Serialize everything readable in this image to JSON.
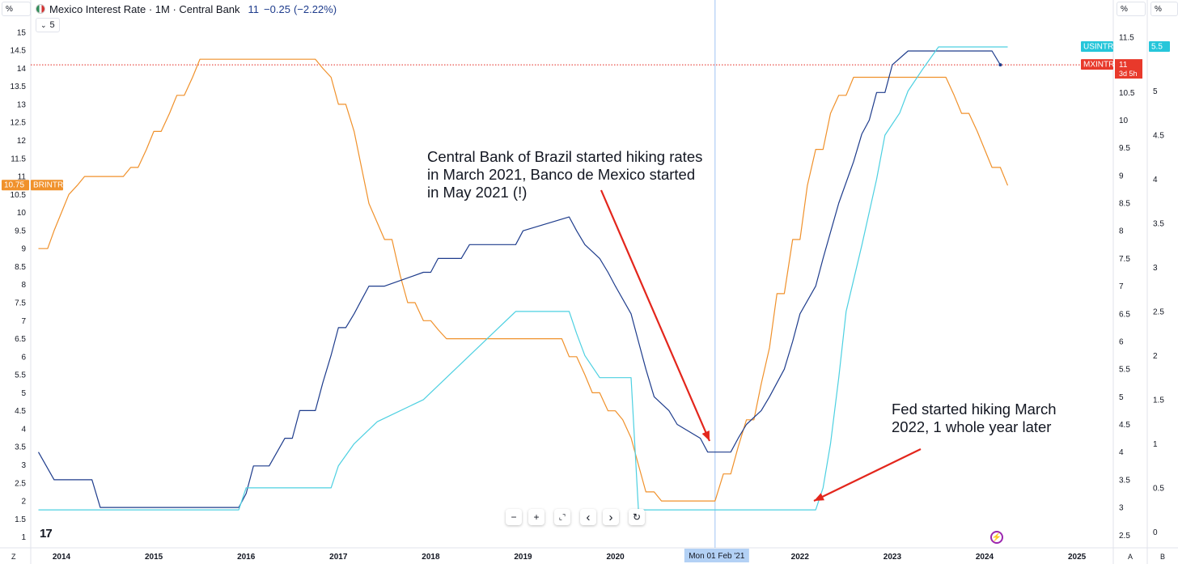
{
  "header": {
    "title": "Mexico Interest Rate · 1M · Central Bank",
    "last_value": "11",
    "change": "−0.25",
    "change_pct": "(−2.22%)",
    "series_count": "5",
    "left_pct_label": "%",
    "right_pct_label_1": "%",
    "right_pct_label_2": "%"
  },
  "toolbar": {
    "zoom_out": "−",
    "zoom_in": "+",
    "reset_view": "⌞⌝",
    "scroll_left": "‹",
    "scroll_right": "›",
    "refresh": "↻"
  },
  "footer": {
    "z_label": "Z",
    "a_label": "A",
    "b_label": "B",
    "logo": "17",
    "crosshair_date": "Mon 01 Feb '21"
  },
  "colors": {
    "BRINTR": "#f0912b",
    "MXINTR": "#1e3c8c",
    "USINTR": "#4dd0e1",
    "annotation_arrow": "#e3261c",
    "crosshair": "#9ec3f3",
    "grid": "#ffffff"
  },
  "chart_data": {
    "type": "line",
    "xlabel": "",
    "ylabel": "",
    "x_ticks": [
      "2014",
      "2015",
      "2016",
      "2017",
      "2018",
      "2019",
      "2020",
      "2021",
      "2022",
      "2023",
      "2024",
      "2025"
    ],
    "left_axis": {
      "unit": "%",
      "ylim": [
        0.7,
        15.4
      ],
      "ticks": [
        "15",
        "14.5",
        "14",
        "13.5",
        "13",
        "12.5",
        "12",
        "11.5",
        "11",
        "10.5",
        "10",
        "9.5",
        "9",
        "8.5",
        "8",
        "7.5",
        "7",
        "6.5",
        "6",
        "5.5",
        "5",
        "4.5",
        "4",
        "3.5",
        "3",
        "2.5",
        "2",
        "1.5",
        "1"
      ]
    },
    "right_axis_1": {
      "unit": "%",
      "ylim": [
        2.27,
        11.85
      ],
      "ticks": [
        "11.5",
        "11",
        "10.5",
        "10",
        "9.5",
        "9",
        "8.5",
        "8",
        "7.5",
        "7",
        "6.5",
        "6",
        "5.5",
        "5",
        "4.5",
        "4",
        "3.5",
        "3",
        "2.5"
      ]
    },
    "right_axis_2": {
      "unit": "%",
      "ylim": [
        -0.18,
        5.83
      ],
      "ticks": [
        "5",
        "4.5",
        "4",
        "3.5",
        "3",
        "2.5",
        "2",
        "1.5",
        "1",
        "0.5",
        "0"
      ]
    },
    "series": [
      {
        "name": "BRINTR",
        "axis": "left",
        "last_label": "10.75",
        "points": [
          [
            2013.75,
            9.0
          ],
          [
            2013.85,
            9.0
          ],
          [
            2013.92,
            9.5
          ],
          [
            2014.0,
            10.0
          ],
          [
            2014.08,
            10.5
          ],
          [
            2014.17,
            10.75
          ],
          [
            2014.25,
            11.0
          ],
          [
            2014.67,
            11.0
          ],
          [
            2014.75,
            11.25
          ],
          [
            2014.83,
            11.25
          ],
          [
            2014.92,
            11.75
          ],
          [
            2015.0,
            12.25
          ],
          [
            2015.08,
            12.25
          ],
          [
            2015.17,
            12.75
          ],
          [
            2015.25,
            13.25
          ],
          [
            2015.33,
            13.25
          ],
          [
            2015.42,
            13.75
          ],
          [
            2015.5,
            14.25
          ],
          [
            2016.75,
            14.25
          ],
          [
            2016.83,
            14.0
          ],
          [
            2016.92,
            13.75
          ],
          [
            2017.0,
            13.0
          ],
          [
            2017.08,
            13.0
          ],
          [
            2017.17,
            12.25
          ],
          [
            2017.25,
            11.25
          ],
          [
            2017.33,
            10.25
          ],
          [
            2017.5,
            9.25
          ],
          [
            2017.58,
            9.25
          ],
          [
            2017.67,
            8.25
          ],
          [
            2017.75,
            7.5
          ],
          [
            2017.83,
            7.5
          ],
          [
            2017.92,
            7.0
          ],
          [
            2018.0,
            7.0
          ],
          [
            2018.08,
            6.75
          ],
          [
            2018.17,
            6.5
          ],
          [
            2019.42,
            6.5
          ],
          [
            2019.5,
            6.0
          ],
          [
            2019.58,
            6.0
          ],
          [
            2019.67,
            5.5
          ],
          [
            2019.75,
            5.0
          ],
          [
            2019.83,
            5.0
          ],
          [
            2019.92,
            4.5
          ],
          [
            2020.0,
            4.5
          ],
          [
            2020.08,
            4.25
          ],
          [
            2020.17,
            3.75
          ],
          [
            2020.25,
            3.0
          ],
          [
            2020.33,
            2.25
          ],
          [
            2020.42,
            2.25
          ],
          [
            2020.5,
            2.0
          ],
          [
            2021.08,
            2.0
          ],
          [
            2021.17,
            2.75
          ],
          [
            2021.25,
            2.75
          ],
          [
            2021.33,
            3.5
          ],
          [
            2021.42,
            4.25
          ],
          [
            2021.5,
            4.25
          ],
          [
            2021.58,
            5.25
          ],
          [
            2021.67,
            6.25
          ],
          [
            2021.75,
            7.75
          ],
          [
            2021.83,
            7.75
          ],
          [
            2021.92,
            9.25
          ],
          [
            2022.0,
            9.25
          ],
          [
            2022.08,
            10.75
          ],
          [
            2022.17,
            11.75
          ],
          [
            2022.25,
            11.75
          ],
          [
            2022.33,
            12.75
          ],
          [
            2022.42,
            13.25
          ],
          [
            2022.5,
            13.25
          ],
          [
            2022.58,
            13.75
          ],
          [
            2023.58,
            13.75
          ],
          [
            2023.67,
            13.25
          ],
          [
            2023.75,
            12.75
          ],
          [
            2023.83,
            12.75
          ],
          [
            2023.92,
            12.25
          ],
          [
            2024.0,
            11.75
          ],
          [
            2024.08,
            11.25
          ],
          [
            2024.17,
            11.25
          ],
          [
            2024.25,
            10.75
          ]
        ]
      },
      {
        "name": "MXINTR",
        "axis": "right1",
        "last_label": "11",
        "points": [
          [
            2013.75,
            4.0
          ],
          [
            2013.92,
            3.5
          ],
          [
            2014.33,
            3.5
          ],
          [
            2014.42,
            3.0
          ],
          [
            2015.92,
            3.0
          ],
          [
            2016.0,
            3.25
          ],
          [
            2016.08,
            3.75
          ],
          [
            2016.25,
            3.75
          ],
          [
            2016.42,
            4.25
          ],
          [
            2016.5,
            4.25
          ],
          [
            2016.58,
            4.75
          ],
          [
            2016.75,
            4.75
          ],
          [
            2016.83,
            5.25
          ],
          [
            2016.92,
            5.75
          ],
          [
            2017.0,
            6.25
          ],
          [
            2017.08,
            6.25
          ],
          [
            2017.17,
            6.5
          ],
          [
            2017.25,
            6.75
          ],
          [
            2017.33,
            7.0
          ],
          [
            2017.42,
            7.0
          ],
          [
            2017.5,
            7.0
          ],
          [
            2017.92,
            7.25
          ],
          [
            2018.0,
            7.25
          ],
          [
            2018.08,
            7.5
          ],
          [
            2018.33,
            7.5
          ],
          [
            2018.42,
            7.75
          ],
          [
            2018.92,
            7.75
          ],
          [
            2019.0,
            8.0
          ],
          [
            2019.5,
            8.25
          ],
          [
            2019.58,
            8.0
          ],
          [
            2019.67,
            7.75
          ],
          [
            2019.83,
            7.5
          ],
          [
            2019.92,
            7.25
          ],
          [
            2020.0,
            7.0
          ],
          [
            2020.17,
            6.5
          ],
          [
            2020.25,
            6.0
          ],
          [
            2020.33,
            5.5
          ],
          [
            2020.42,
            5.0
          ],
          [
            2020.58,
            4.75
          ],
          [
            2020.67,
            4.5
          ],
          [
            2020.92,
            4.25
          ],
          [
            2021.0,
            4.0
          ],
          [
            2021.25,
            4.0
          ],
          [
            2021.33,
            4.25
          ],
          [
            2021.42,
            4.5
          ],
          [
            2021.58,
            4.75
          ],
          [
            2021.67,
            5.0
          ],
          [
            2021.83,
            5.5
          ],
          [
            2021.92,
            6.0
          ],
          [
            2022.0,
            6.5
          ],
          [
            2022.17,
            7.0
          ],
          [
            2022.25,
            7.5
          ],
          [
            2022.42,
            8.5
          ],
          [
            2022.58,
            9.25
          ],
          [
            2022.67,
            9.75
          ],
          [
            2022.75,
            10.0
          ],
          [
            2022.83,
            10.5
          ],
          [
            2022.92,
            10.5
          ],
          [
            2023.0,
            11.0
          ],
          [
            2023.17,
            11.25
          ],
          [
            2024.08,
            11.25
          ],
          [
            2024.17,
            11.0
          ]
        ]
      },
      {
        "name": "USINTR",
        "axis": "right2",
        "last_label": "5.5",
        "points": [
          [
            2013.75,
            0.25
          ],
          [
            2015.92,
            0.25
          ],
          [
            2016.0,
            0.5
          ],
          [
            2016.92,
            0.5
          ],
          [
            2017.0,
            0.75
          ],
          [
            2017.17,
            1.0
          ],
          [
            2017.42,
            1.25
          ],
          [
            2017.92,
            1.5
          ],
          [
            2018.17,
            1.75
          ],
          [
            2018.42,
            2.0
          ],
          [
            2018.67,
            2.25
          ],
          [
            2018.92,
            2.5
          ],
          [
            2019.5,
            2.5
          ],
          [
            2019.58,
            2.25
          ],
          [
            2019.67,
            2.0
          ],
          [
            2019.83,
            1.75
          ],
          [
            2020.17,
            1.75
          ],
          [
            2020.25,
            0.25
          ],
          [
            2022.17,
            0.25
          ],
          [
            2022.25,
            0.5
          ],
          [
            2022.33,
            1.0
          ],
          [
            2022.42,
            1.75
          ],
          [
            2022.5,
            2.5
          ],
          [
            2022.67,
            3.25
          ],
          [
            2022.83,
            4.0
          ],
          [
            2022.92,
            4.5
          ],
          [
            2023.08,
            4.75
          ],
          [
            2023.17,
            5.0
          ],
          [
            2023.33,
            5.25
          ],
          [
            2023.5,
            5.5
          ],
          [
            2024.25,
            5.5
          ]
        ]
      }
    ],
    "annotations": [
      {
        "text": "Central Bank of Brazil started hiking rates in March 2021, Banco de Mexico started in May 2021 (!)",
        "lines": [
          "Central Bank of Brazil started hiking rates",
          "in March 2021, Banco de Mexico started",
          "in May 2021 (!)"
        ]
      },
      {
        "text": "Fed started hiking March 2022, 1 whole year later",
        "lines": [
          "Fed started hiking March",
          "2022, 1 whole year later"
        ]
      }
    ],
    "price_lines": {
      "MXINTR_value": 11
    },
    "labels": {
      "BRINTR": "BRINTR",
      "MXINTR": "MXINTR",
      "USINTR": "USINTR",
      "MXINTR_countdown": "3d 5h"
    },
    "grid": false,
    "legend": "none"
  }
}
